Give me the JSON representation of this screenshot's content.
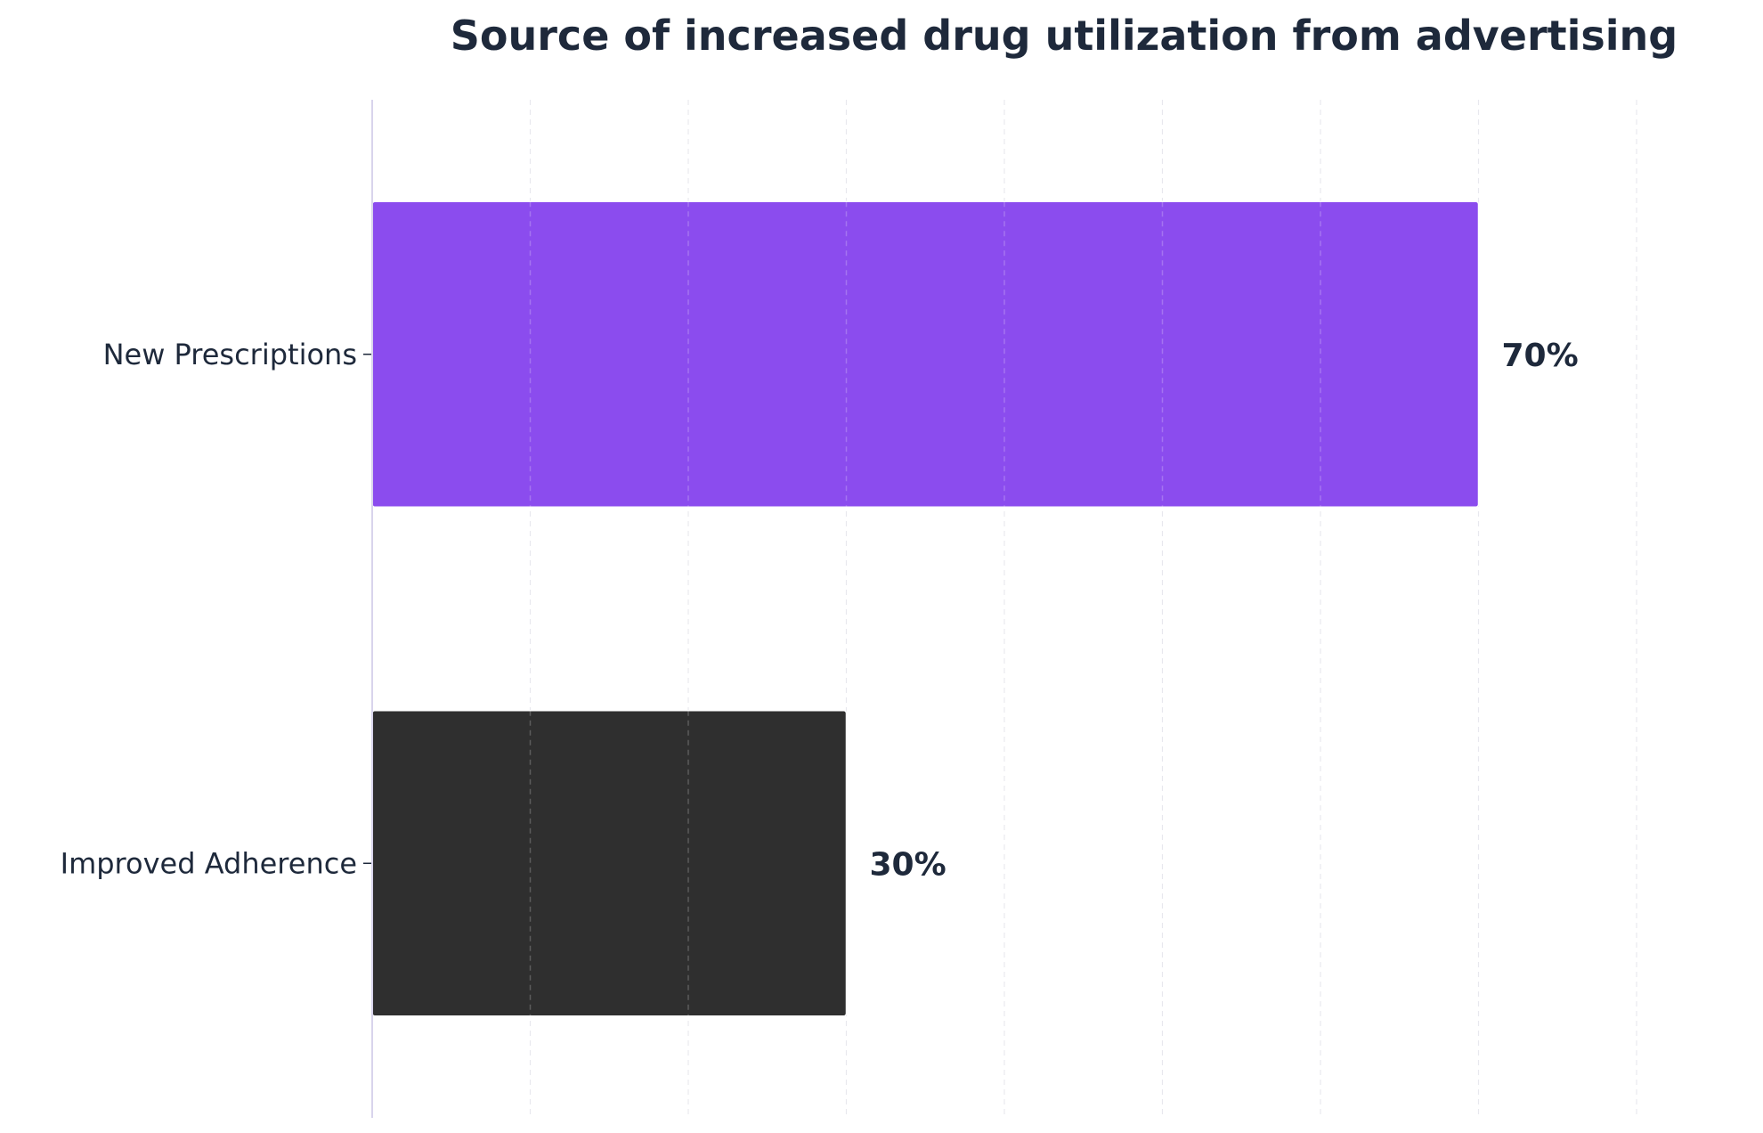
{
  "chart_data": {
    "type": "bar",
    "orientation": "horizontal",
    "title": "Source of increased drug utilization from advertising",
    "xlabel": "",
    "ylabel": "",
    "categories": [
      "New Prescriptions",
      "Improved Adherence"
    ],
    "values": [
      70,
      30
    ],
    "value_labels": [
      "70%",
      "30%"
    ],
    "xlim": [
      0,
      80
    ],
    "grid": "vertical dashed",
    "colors": {
      "New Prescriptions": "#8b4cee",
      "Improved Adherence": "#2f2f2f",
      "title": "#1e293b",
      "axis": "#d8d4ec",
      "grid": "#e8e8ee"
    }
  }
}
